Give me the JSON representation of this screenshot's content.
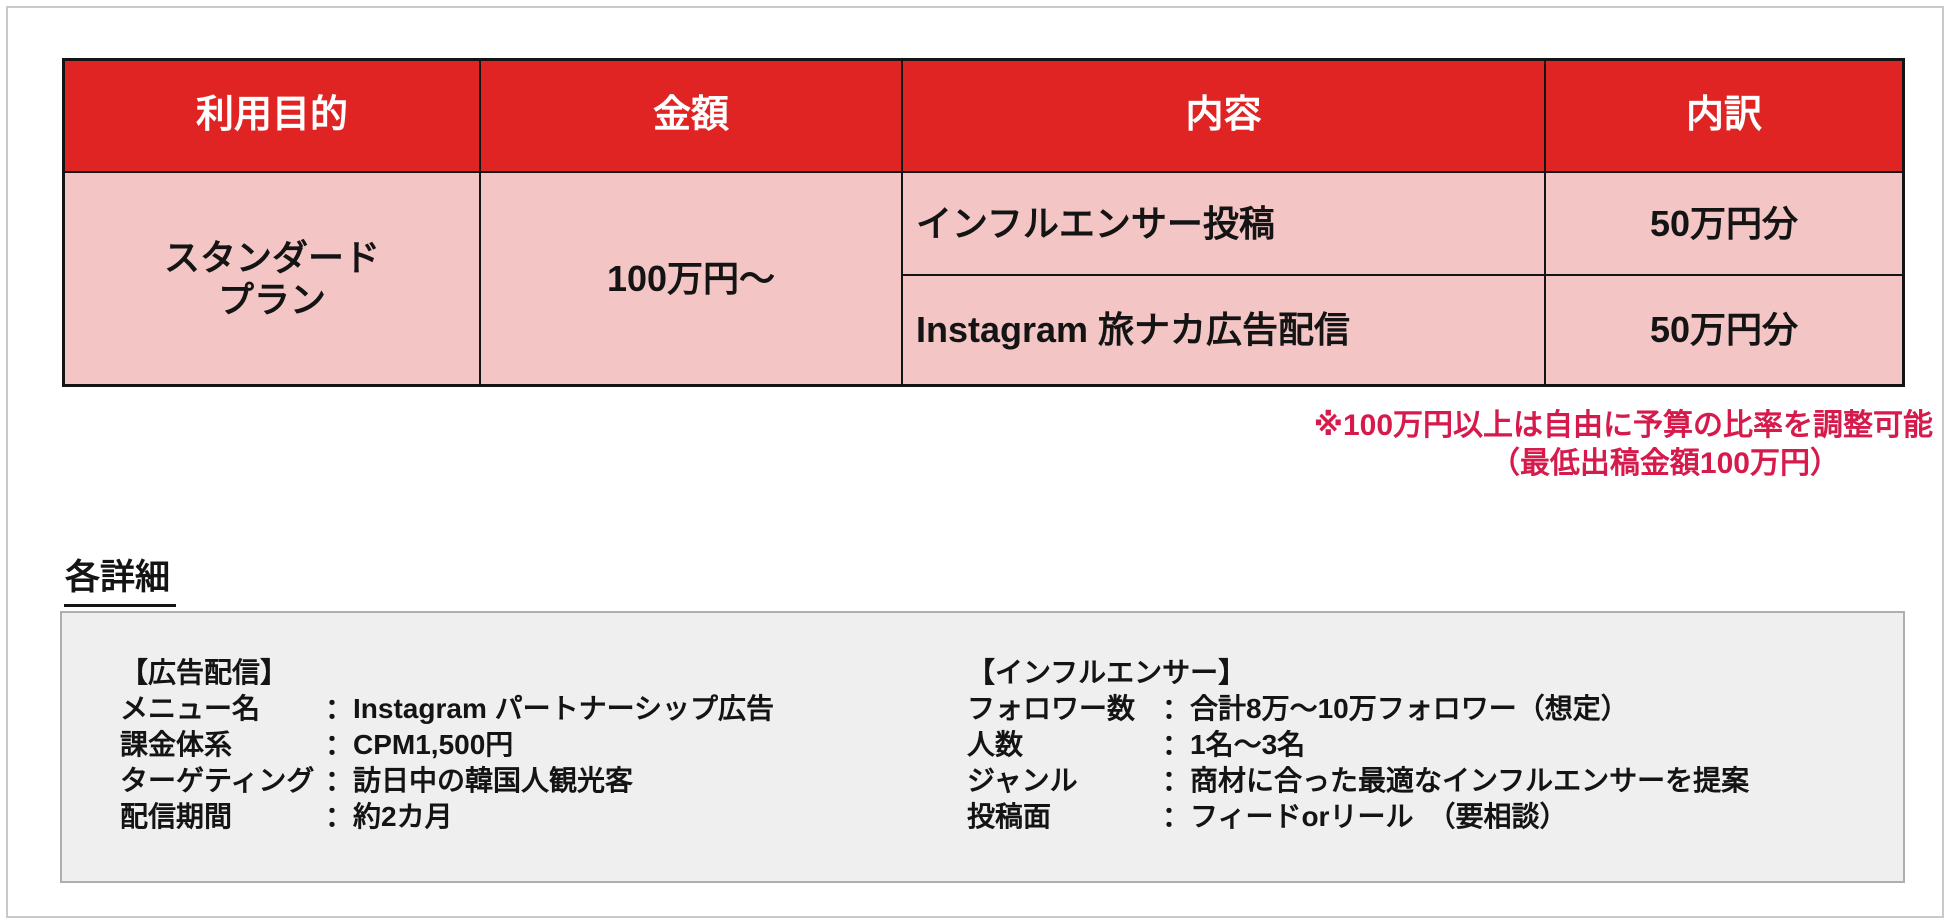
{
  "colors": {
    "header_red": "#e02424",
    "cell_pink": "#f3c6c5",
    "note_crimson": "#d61a4c",
    "box_gray": "#efefef"
  },
  "table": {
    "headers": [
      "利用目的",
      "金額",
      "内容",
      "内訳"
    ],
    "plan_line1": "スタンダード",
    "plan_line2": "プラン",
    "price": "100万円〜",
    "rows": [
      {
        "content": "インフルエンサー投稿",
        "breakdown": "50万円分"
      },
      {
        "content": "Instagram 旅ナカ広告配信",
        "breakdown": "50万円分"
      }
    ]
  },
  "note": {
    "line1": "※100万円以上は自由に予算の比率を調整可能",
    "line2": "（最低出稿金額100万円）"
  },
  "details": {
    "heading": "各詳細",
    "separator": "：",
    "ads": {
      "title": "【広告配信】",
      "items": [
        {
          "label": "メニュー名",
          "value": "Instagram パートナーシップ広告"
        },
        {
          "label": "課金体系",
          "value": "CPM1,500円"
        },
        {
          "label": "ターゲティング",
          "value": "訪日中の韓国人観光客"
        },
        {
          "label": "配信期間",
          "value": "約2カ月"
        }
      ]
    },
    "influencer": {
      "title": "【インフルエンサー】",
      "items": [
        {
          "label": "フォロワー数",
          "value": "合計8万〜10万フォロワー（想定）"
        },
        {
          "label": "人数",
          "value": "1名〜3名"
        },
        {
          "label": "ジャンル",
          "value": "商材に合った最適なインフルエンサーを提案"
        },
        {
          "label": "投稿面",
          "value": "フィードorリール　（要相談）"
        }
      ]
    }
  }
}
